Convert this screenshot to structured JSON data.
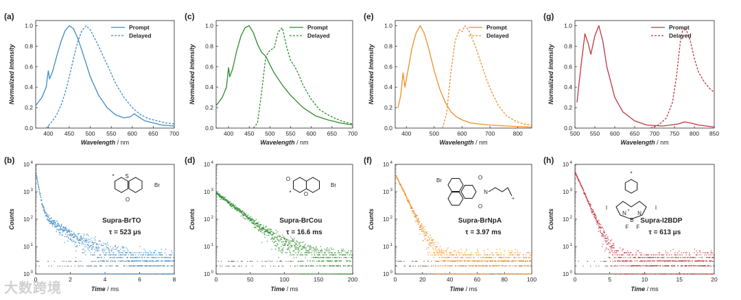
{
  "colors": {
    "blue": "#3a89c4",
    "green": "#2a8a2a",
    "orange": "#ef8e22",
    "red": "#c0323c",
    "gray": "#555555"
  },
  "watermark": "大数跨境",
  "chart_data": [
    {
      "panel": "(a)",
      "type": "line",
      "color_key": "blue",
      "xlabel": "Wavelength / nm",
      "ylabel": "Normalized Intensity",
      "xlim": [
        370,
        700
      ],
      "ylim": [
        0,
        1.05
      ],
      "xticks": [
        400,
        450,
        500,
        550,
        600,
        650,
        700
      ],
      "yticks": [
        0.0,
        0.2,
        0.4,
        0.6,
        0.8,
        1.0
      ],
      "legend": [
        "Prompt",
        "Delayed"
      ],
      "series": [
        {
          "name": "Prompt",
          "style": "solid",
          "x": [
            370,
            385,
            395,
            400,
            403,
            410,
            420,
            430,
            440,
            450,
            460,
            470,
            480,
            490,
            500,
            520,
            540,
            560,
            580,
            595,
            605,
            615,
            630,
            650,
            670,
            700
          ],
          "y": [
            0.22,
            0.3,
            0.4,
            0.56,
            0.48,
            0.55,
            0.7,
            0.84,
            0.95,
            1.0,
            0.97,
            0.88,
            0.76,
            0.63,
            0.5,
            0.32,
            0.2,
            0.13,
            0.1,
            0.11,
            0.14,
            0.11,
            0.07,
            0.05,
            0.03,
            0.02
          ]
        },
        {
          "name": "Delayed",
          "style": "dashed",
          "x": [
            395,
            400,
            410,
            420,
            430,
            440,
            450,
            460,
            470,
            480,
            490,
            500,
            510,
            520,
            540,
            560,
            580,
            600,
            620,
            640,
            660,
            680,
            700
          ],
          "y": [
            0.0,
            0.02,
            0.07,
            0.13,
            0.22,
            0.34,
            0.5,
            0.68,
            0.84,
            0.95,
            1.0,
            0.96,
            0.88,
            0.8,
            0.62,
            0.44,
            0.3,
            0.2,
            0.13,
            0.09,
            0.07,
            0.05,
            0.04
          ]
        }
      ]
    },
    {
      "panel": "(c)",
      "type": "line",
      "color_key": "green",
      "xlabel": "Wavelength / nm",
      "ylabel": "Normalized Intensity",
      "xlim": [
        370,
        700
      ],
      "ylim": [
        0,
        1.05
      ],
      "xticks": [
        400,
        450,
        500,
        550,
        600,
        650,
        700
      ],
      "yticks": [
        0.0,
        0.2,
        0.4,
        0.6,
        0.8,
        1.0
      ],
      "legend": [
        "Prompt",
        "Delayed"
      ],
      "series": [
        {
          "name": "Prompt",
          "style": "solid",
          "x": [
            370,
            385,
            395,
            400,
            403,
            410,
            420,
            430,
            440,
            450,
            460,
            470,
            480,
            490,
            500,
            510,
            520,
            530,
            550,
            580,
            610,
            640,
            670,
            700
          ],
          "y": [
            0.22,
            0.3,
            0.4,
            0.59,
            0.5,
            0.58,
            0.76,
            0.9,
            0.98,
            1.0,
            0.93,
            0.82,
            0.74,
            0.7,
            0.62,
            0.54,
            0.48,
            0.42,
            0.32,
            0.2,
            0.12,
            0.08,
            0.05,
            0.03
          ]
        },
        {
          "name": "Delayed",
          "style": "dashed",
          "x": [
            460,
            470,
            480,
            490,
            500,
            510,
            520,
            530,
            540,
            550,
            560,
            570,
            580,
            600,
            620,
            640,
            660,
            680,
            700
          ],
          "y": [
            0.0,
            0.05,
            0.35,
            0.7,
            0.76,
            0.78,
            0.94,
            0.98,
            0.8,
            0.66,
            0.6,
            0.52,
            0.42,
            0.28,
            0.18,
            0.13,
            0.09,
            0.06,
            0.04
          ]
        }
      ]
    },
    {
      "panel": "(e)",
      "type": "line",
      "color_key": "orange",
      "xlabel": "Wavelength / nm",
      "ylabel": "Normalized Intensity",
      "xlim": [
        360,
        850
      ],
      "ylim": [
        0,
        1.05
      ],
      "xticks": [
        400,
        500,
        600,
        700,
        800
      ],
      "yticks": [
        0.0,
        0.2,
        0.4,
        0.6,
        0.8,
        1.0
      ],
      "legend": [
        "Prompt",
        "Delayed"
      ],
      "series": [
        {
          "name": "Prompt",
          "style": "solid",
          "x": [
            370,
            380,
            388,
            395,
            405,
            420,
            435,
            450,
            465,
            480,
            500,
            520,
            540,
            560,
            580,
            600,
            630,
            660,
            700,
            760,
            850
          ],
          "y": [
            0.2,
            0.32,
            0.54,
            0.4,
            0.55,
            0.78,
            0.93,
            1.0,
            0.92,
            0.78,
            0.56,
            0.38,
            0.25,
            0.16,
            0.11,
            0.08,
            0.05,
            0.04,
            0.03,
            0.02,
            0.01
          ]
        },
        {
          "name": "Delayed",
          "style": "dashed",
          "x": [
            530,
            545,
            560,
            575,
            590,
            600,
            610,
            620,
            630,
            650,
            670,
            690,
            710,
            730,
            760,
            790,
            820,
            850
          ],
          "y": [
            0.0,
            0.15,
            0.55,
            0.85,
            0.96,
            0.94,
            1.0,
            0.97,
            0.92,
            0.78,
            0.62,
            0.46,
            0.33,
            0.22,
            0.12,
            0.07,
            0.04,
            0.03
          ]
        }
      ]
    },
    {
      "panel": "(g)",
      "type": "line",
      "color_key": "red",
      "xlabel": "Wavelength / nm",
      "ylabel": "Normalized Intensity",
      "xlim": [
        500,
        850
      ],
      "ylim": [
        0,
        1.05
      ],
      "xticks": [
        500,
        550,
        600,
        650,
        700,
        750,
        800,
        850
      ],
      "yticks": [
        0.0,
        0.2,
        0.4,
        0.6,
        0.8,
        1.0
      ],
      "legend": [
        "Prompt",
        "Delayed"
      ],
      "series": [
        {
          "name": "Prompt",
          "style": "solid",
          "x": [
            505,
            515,
            525,
            533,
            540,
            550,
            560,
            570,
            580,
            600,
            620,
            650,
            680,
            720,
            760,
            775,
            790,
            810,
            830,
            850
          ],
          "y": [
            0.25,
            0.6,
            0.92,
            0.83,
            0.72,
            0.9,
            1.0,
            0.85,
            0.6,
            0.3,
            0.16,
            0.07,
            0.03,
            0.02,
            0.04,
            0.06,
            0.05,
            0.03,
            0.02,
            0.01
          ]
        },
        {
          "name": "Delayed",
          "style": "dashed",
          "x": [
            690,
            710,
            730,
            745,
            755,
            765,
            772,
            780,
            790,
            800,
            810,
            825,
            840,
            850
          ],
          "y": [
            0.0,
            0.03,
            0.1,
            0.25,
            0.5,
            0.85,
            0.98,
            0.96,
            0.85,
            0.68,
            0.55,
            0.45,
            0.38,
            0.35
          ]
        }
      ]
    },
    {
      "panel": "(b)",
      "type": "scatter",
      "color_key": "blue",
      "xlabel": "Time / ms",
      "ylabel": "Counts",
      "xlim": [
        0,
        8
      ],
      "ylog": true,
      "ylim_exp": [
        0,
        4
      ],
      "xticks": [
        0,
        2,
        4,
        6,
        8
      ],
      "yticks_exp": [
        0,
        1,
        2,
        3,
        4
      ],
      "decay": {
        "a1": 4500,
        "t1": 0.12,
        "a2": 180,
        "t2": 1.0,
        "bg": 3.0,
        "tail_end": 8
      },
      "compound": "Supra-BrTO",
      "lifetime": "τ = 523 μs",
      "structure_labels": [
        "S",
        "O",
        "Br",
        "*"
      ]
    },
    {
      "panel": "(d)",
      "type": "scatter",
      "color_key": "green",
      "xlabel": "Time / ms",
      "ylabel": "Counts",
      "xlim": [
        0,
        200
      ],
      "ylog": true,
      "ylim_exp": [
        0,
        4
      ],
      "xticks": [
        0,
        50,
        100,
        150,
        200
      ],
      "yticks_exp": [
        0,
        1,
        2,
        3,
        4
      ],
      "decay": {
        "a1": 900,
        "t1": 22,
        "a2": 0,
        "t2": 1,
        "bg": 3.5,
        "tail_end": 200
      },
      "compound": "Supra-BrCou",
      "lifetime": "τ = 16.6 ms",
      "structure_labels": [
        "O",
        "O",
        "Br",
        "*"
      ]
    },
    {
      "panel": "(f)",
      "type": "scatter",
      "color_key": "orange",
      "xlabel": "Time / ms",
      "ylabel": "Counts",
      "xlim": [
        0,
        100
      ],
      "ylog": true,
      "ylim_exp": [
        0,
        4
      ],
      "xticks": [
        0,
        20,
        40,
        60,
        80,
        100
      ],
      "yticks_exp": [
        0,
        1,
        2,
        3,
        4
      ],
      "decay": {
        "a1": 4200,
        "t1": 4.2,
        "a2": 0,
        "t2": 1,
        "bg": 3.0,
        "tail_end": 100
      },
      "compound": "Supra-BrNpA",
      "lifetime": "τ = 3.97 ms",
      "structure_labels": [
        "Br",
        "O",
        "O",
        "N",
        "*"
      ]
    },
    {
      "panel": "(h)",
      "type": "scatter",
      "color_key": "red",
      "xlabel": "Time / ms",
      "ylabel": "Counts",
      "xlim": [
        0,
        20
      ],
      "ylog": true,
      "ylim_exp": [
        0,
        4
      ],
      "xticks": [
        0,
        5,
        10,
        15,
        20
      ],
      "yticks_exp": [
        0,
        1,
        2,
        3,
        4
      ],
      "decay": {
        "a1": 5000,
        "t1": 0.75,
        "a2": 0,
        "t2": 1,
        "bg": 3.0,
        "tail_end": 20
      },
      "compound": "Supra-I2BDP",
      "lifetime": "τ = 613 μs",
      "structure_labels": [
        "I",
        "I",
        "N",
        "N",
        "B",
        "F",
        "F",
        "+",
        "−",
        "*"
      ]
    }
  ]
}
